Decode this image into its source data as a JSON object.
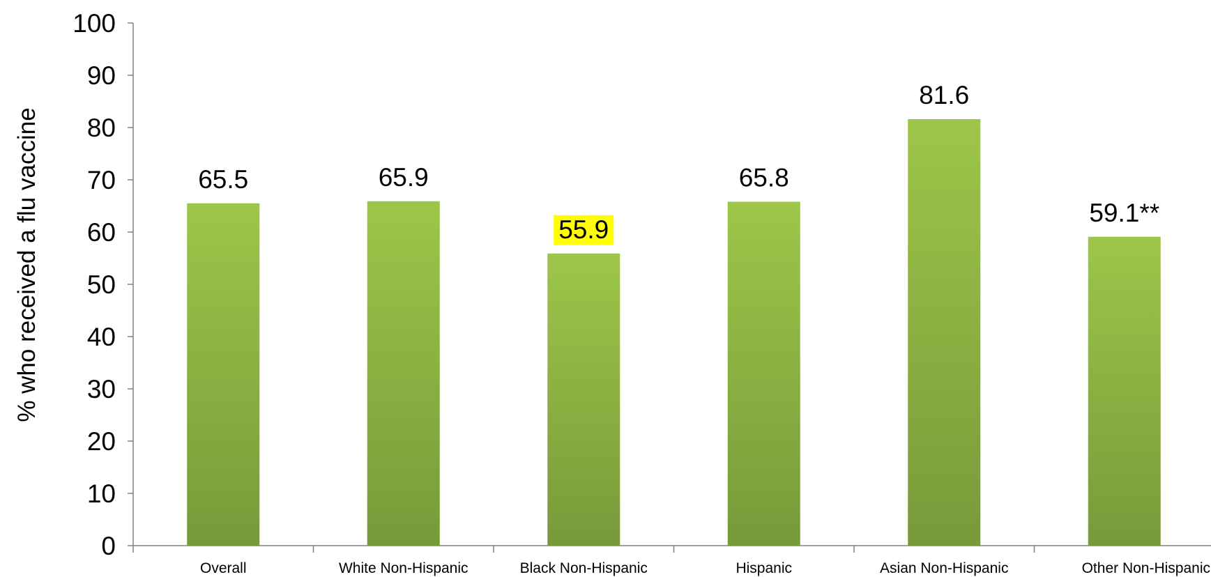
{
  "chart_data": {
    "type": "bar",
    "title": "",
    "xlabel": "",
    "ylabel": "% who received a flu vaccine",
    "ylim": [
      0,
      100
    ],
    "yticks": [
      0,
      10,
      20,
      30,
      40,
      50,
      60,
      70,
      80,
      90,
      100
    ],
    "grid": false,
    "categories": [
      "Overall",
      "White Non-Hispanic",
      "Black Non-Hispanic",
      "Hispanic",
      "Asian Non-Hispanic",
      "Other Non-Hispanic"
    ],
    "values": [
      65.5,
      65.9,
      55.9,
      65.8,
      81.6,
      59.1
    ],
    "data_labels": [
      "65.5",
      "65.9",
      "55.9",
      "65.8",
      "81.6",
      "59.1**"
    ],
    "highlighted_label_index": 2,
    "colors": {
      "bar_top": "#9dc649",
      "bar_bottom": "#779a3a",
      "highlight": "#ffff00",
      "axis": "#808080"
    }
  }
}
